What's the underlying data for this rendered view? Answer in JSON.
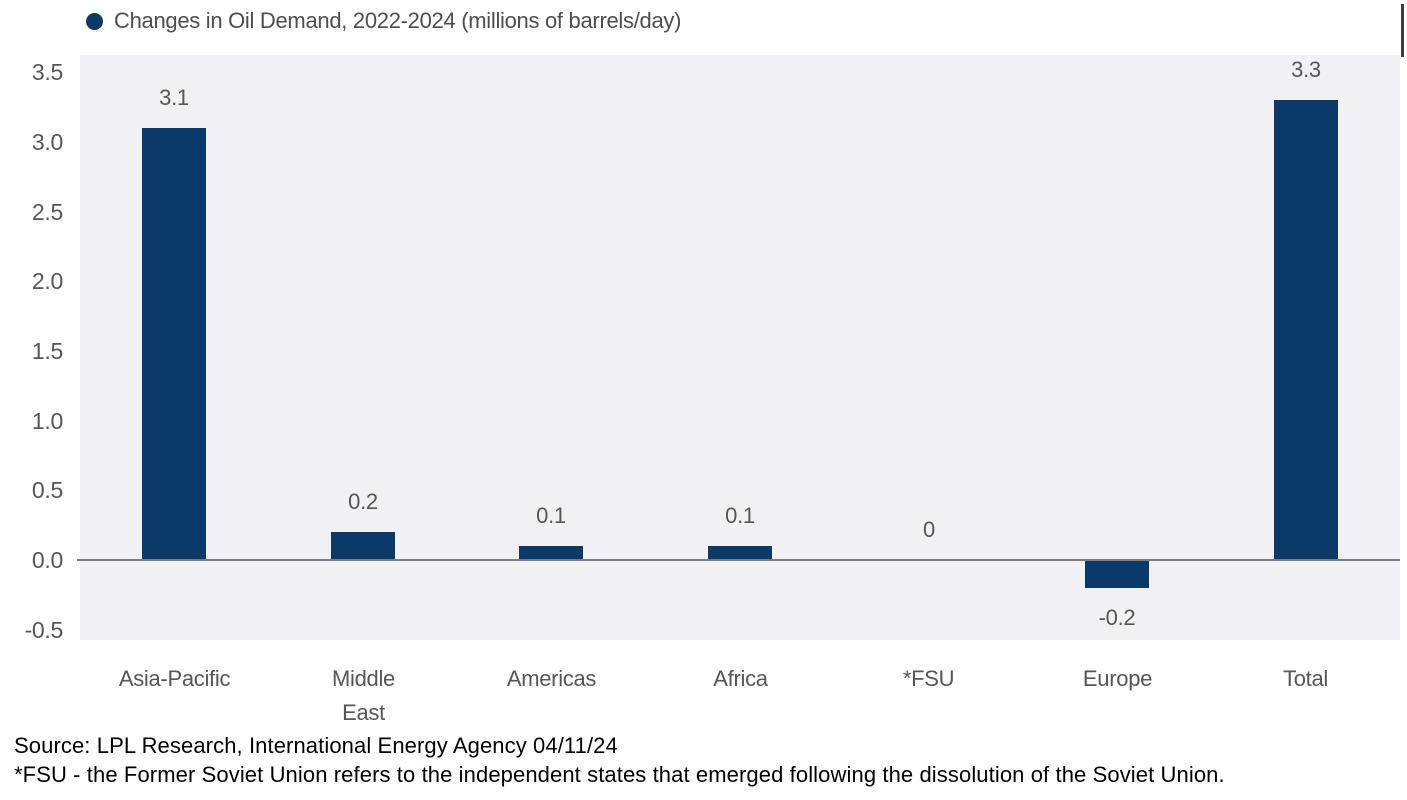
{
  "legend": {
    "marker": "filled-circle-icon",
    "label": "Changes in Oil Demand, 2022-2024 (millions of barrels/day)"
  },
  "chart_data": {
    "type": "bar",
    "title": "Changes in Oil Demand, 2022-2024 (millions of barrels/day)",
    "categories": [
      "Asia-Pacific",
      "Middle East",
      "Americas",
      "Africa",
      "*FSU",
      "Europe",
      "Total"
    ],
    "xtick_lines": [
      [
        "Asia-Pacific"
      ],
      [
        "Middle",
        "East"
      ],
      [
        "Americas"
      ],
      [
        "Africa"
      ],
      [
        "*FSU"
      ],
      [
        "Europe"
      ],
      [
        "Total"
      ]
    ],
    "values": [
      3.1,
      0.2,
      0.1,
      0.1,
      0,
      -0.2,
      3.3
    ],
    "value_labels": [
      "3.1",
      "0.2",
      "0.1",
      "0.1",
      "0",
      "-0.2",
      "3.3"
    ],
    "ytick_labels": [
      "3.5",
      "3.0",
      "2.5",
      "2.0",
      "1.5",
      "1.0",
      "0.5",
      "0.0",
      "-0.5"
    ],
    "yticks": [
      3.5,
      3.0,
      2.5,
      2.0,
      1.5,
      1.0,
      0.5,
      0.0,
      -0.5
    ],
    "ylim": [
      -0.5,
      3.5
    ],
    "xlabel": "",
    "ylabel": "",
    "grid": false,
    "legend_position": "top-left",
    "bar_color": "#0b3a69",
    "plot_bg": "#f1f1f5",
    "zero_line_color": "#7d7d80",
    "axis_text_color": "#56565a"
  },
  "footer": {
    "source": "Source: LPL Research, International Energy Agency 04/11/24",
    "footnote": "*FSU - the Former Soviet Union refers to the independent states that emerged following the dissolution of the Soviet Union."
  }
}
